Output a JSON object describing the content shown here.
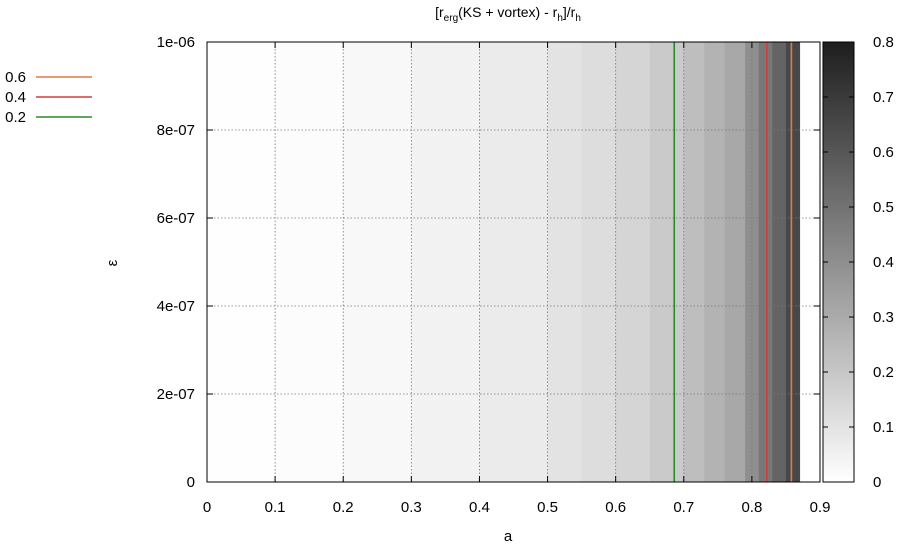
{
  "chart_data": {
    "type": "heatmap",
    "title_parts": {
      "lb1": "[r",
      "sub1": "erg",
      "mid": "(KS + vortex) - r",
      "sub2": "h",
      "mid2": "]/r",
      "sub3": "h"
    },
    "xlabel": "a",
    "ylabel": "ε",
    "xlim": [
      0,
      0.9
    ],
    "ylim": [
      0,
      1e-06
    ],
    "x_ticks": [
      {
        "value": 0,
        "label": "0"
      },
      {
        "value": 0.1,
        "label": "0.1"
      },
      {
        "value": 0.2,
        "label": "0.2"
      },
      {
        "value": 0.3,
        "label": "0.3"
      },
      {
        "value": 0.4,
        "label": "0.4"
      },
      {
        "value": 0.5,
        "label": "0.5"
      },
      {
        "value": 0.6,
        "label": "0.6"
      },
      {
        "value": 0.7,
        "label": "0.7"
      },
      {
        "value": 0.8,
        "label": "0.8"
      },
      {
        "value": 0.9,
        "label": "0.9"
      }
    ],
    "y_ticks": [
      {
        "value": 0,
        "label": "0"
      },
      {
        "value": 2e-07,
        "label": "2e-07"
      },
      {
        "value": 4e-07,
        "label": "4e-07"
      },
      {
        "value": 6e-07,
        "label": "6e-07"
      },
      {
        "value": 8e-07,
        "label": "8e-07"
      },
      {
        "value": 1e-06,
        "label": "1e-06"
      }
    ],
    "grid": true,
    "colorbar": {
      "range": [
        0,
        0.8
      ],
      "low_color": "#ffffff",
      "high_color": "#1e1e1e",
      "ticks": [
        {
          "value": 0,
          "label": "0"
        },
        {
          "value": 0.1,
          "label": "0.1"
        },
        {
          "value": 0.2,
          "label": "0.2"
        },
        {
          "value": 0.3,
          "label": "0.3"
        },
        {
          "value": 0.4,
          "label": "0.4"
        },
        {
          "value": 0.5,
          "label": "0.5"
        },
        {
          "value": 0.6,
          "label": "0.6"
        },
        {
          "value": 0.7,
          "label": "0.7"
        },
        {
          "value": 0.8,
          "label": "0.8"
        }
      ]
    },
    "heatmap_bands": [
      {
        "a_from": 0.0,
        "a_to": 0.1,
        "value": 0.002
      },
      {
        "a_from": 0.1,
        "a_to": 0.2,
        "value": 0.01
      },
      {
        "a_from": 0.2,
        "a_to": 0.3,
        "value": 0.025
      },
      {
        "a_from": 0.3,
        "a_to": 0.4,
        "value": 0.045
      },
      {
        "a_from": 0.4,
        "a_to": 0.5,
        "value": 0.07
      },
      {
        "a_from": 0.5,
        "a_to": 0.55,
        "value": 0.1
      },
      {
        "a_from": 0.55,
        "a_to": 0.6,
        "value": 0.12
      },
      {
        "a_from": 0.6,
        "a_to": 0.65,
        "value": 0.15
      },
      {
        "a_from": 0.65,
        "a_to": 0.7,
        "value": 0.19
      },
      {
        "a_from": 0.7,
        "a_to": 0.73,
        "value": 0.23
      },
      {
        "a_from": 0.73,
        "a_to": 0.76,
        "value": 0.27
      },
      {
        "a_from": 0.76,
        "a_to": 0.79,
        "value": 0.31
      },
      {
        "a_from": 0.79,
        "a_to": 0.81,
        "value": 0.4
      },
      {
        "a_from": 0.81,
        "a_to": 0.83,
        "value": 0.48
      },
      {
        "a_from": 0.83,
        "a_to": 0.85,
        "value": 0.55
      },
      {
        "a_from": 0.85,
        "a_to": 0.87,
        "value": 0.65
      }
    ],
    "contours": [
      {
        "level": "0.6",
        "color": "#e0784a",
        "a": 0.858
      },
      {
        "level": "0.4",
        "color": "#d43c3c",
        "a": 0.822
      },
      {
        "level": "0.2",
        "color": "#2a8a2a",
        "a": 0.686
      }
    ],
    "data_extent_a": 0.87
  }
}
